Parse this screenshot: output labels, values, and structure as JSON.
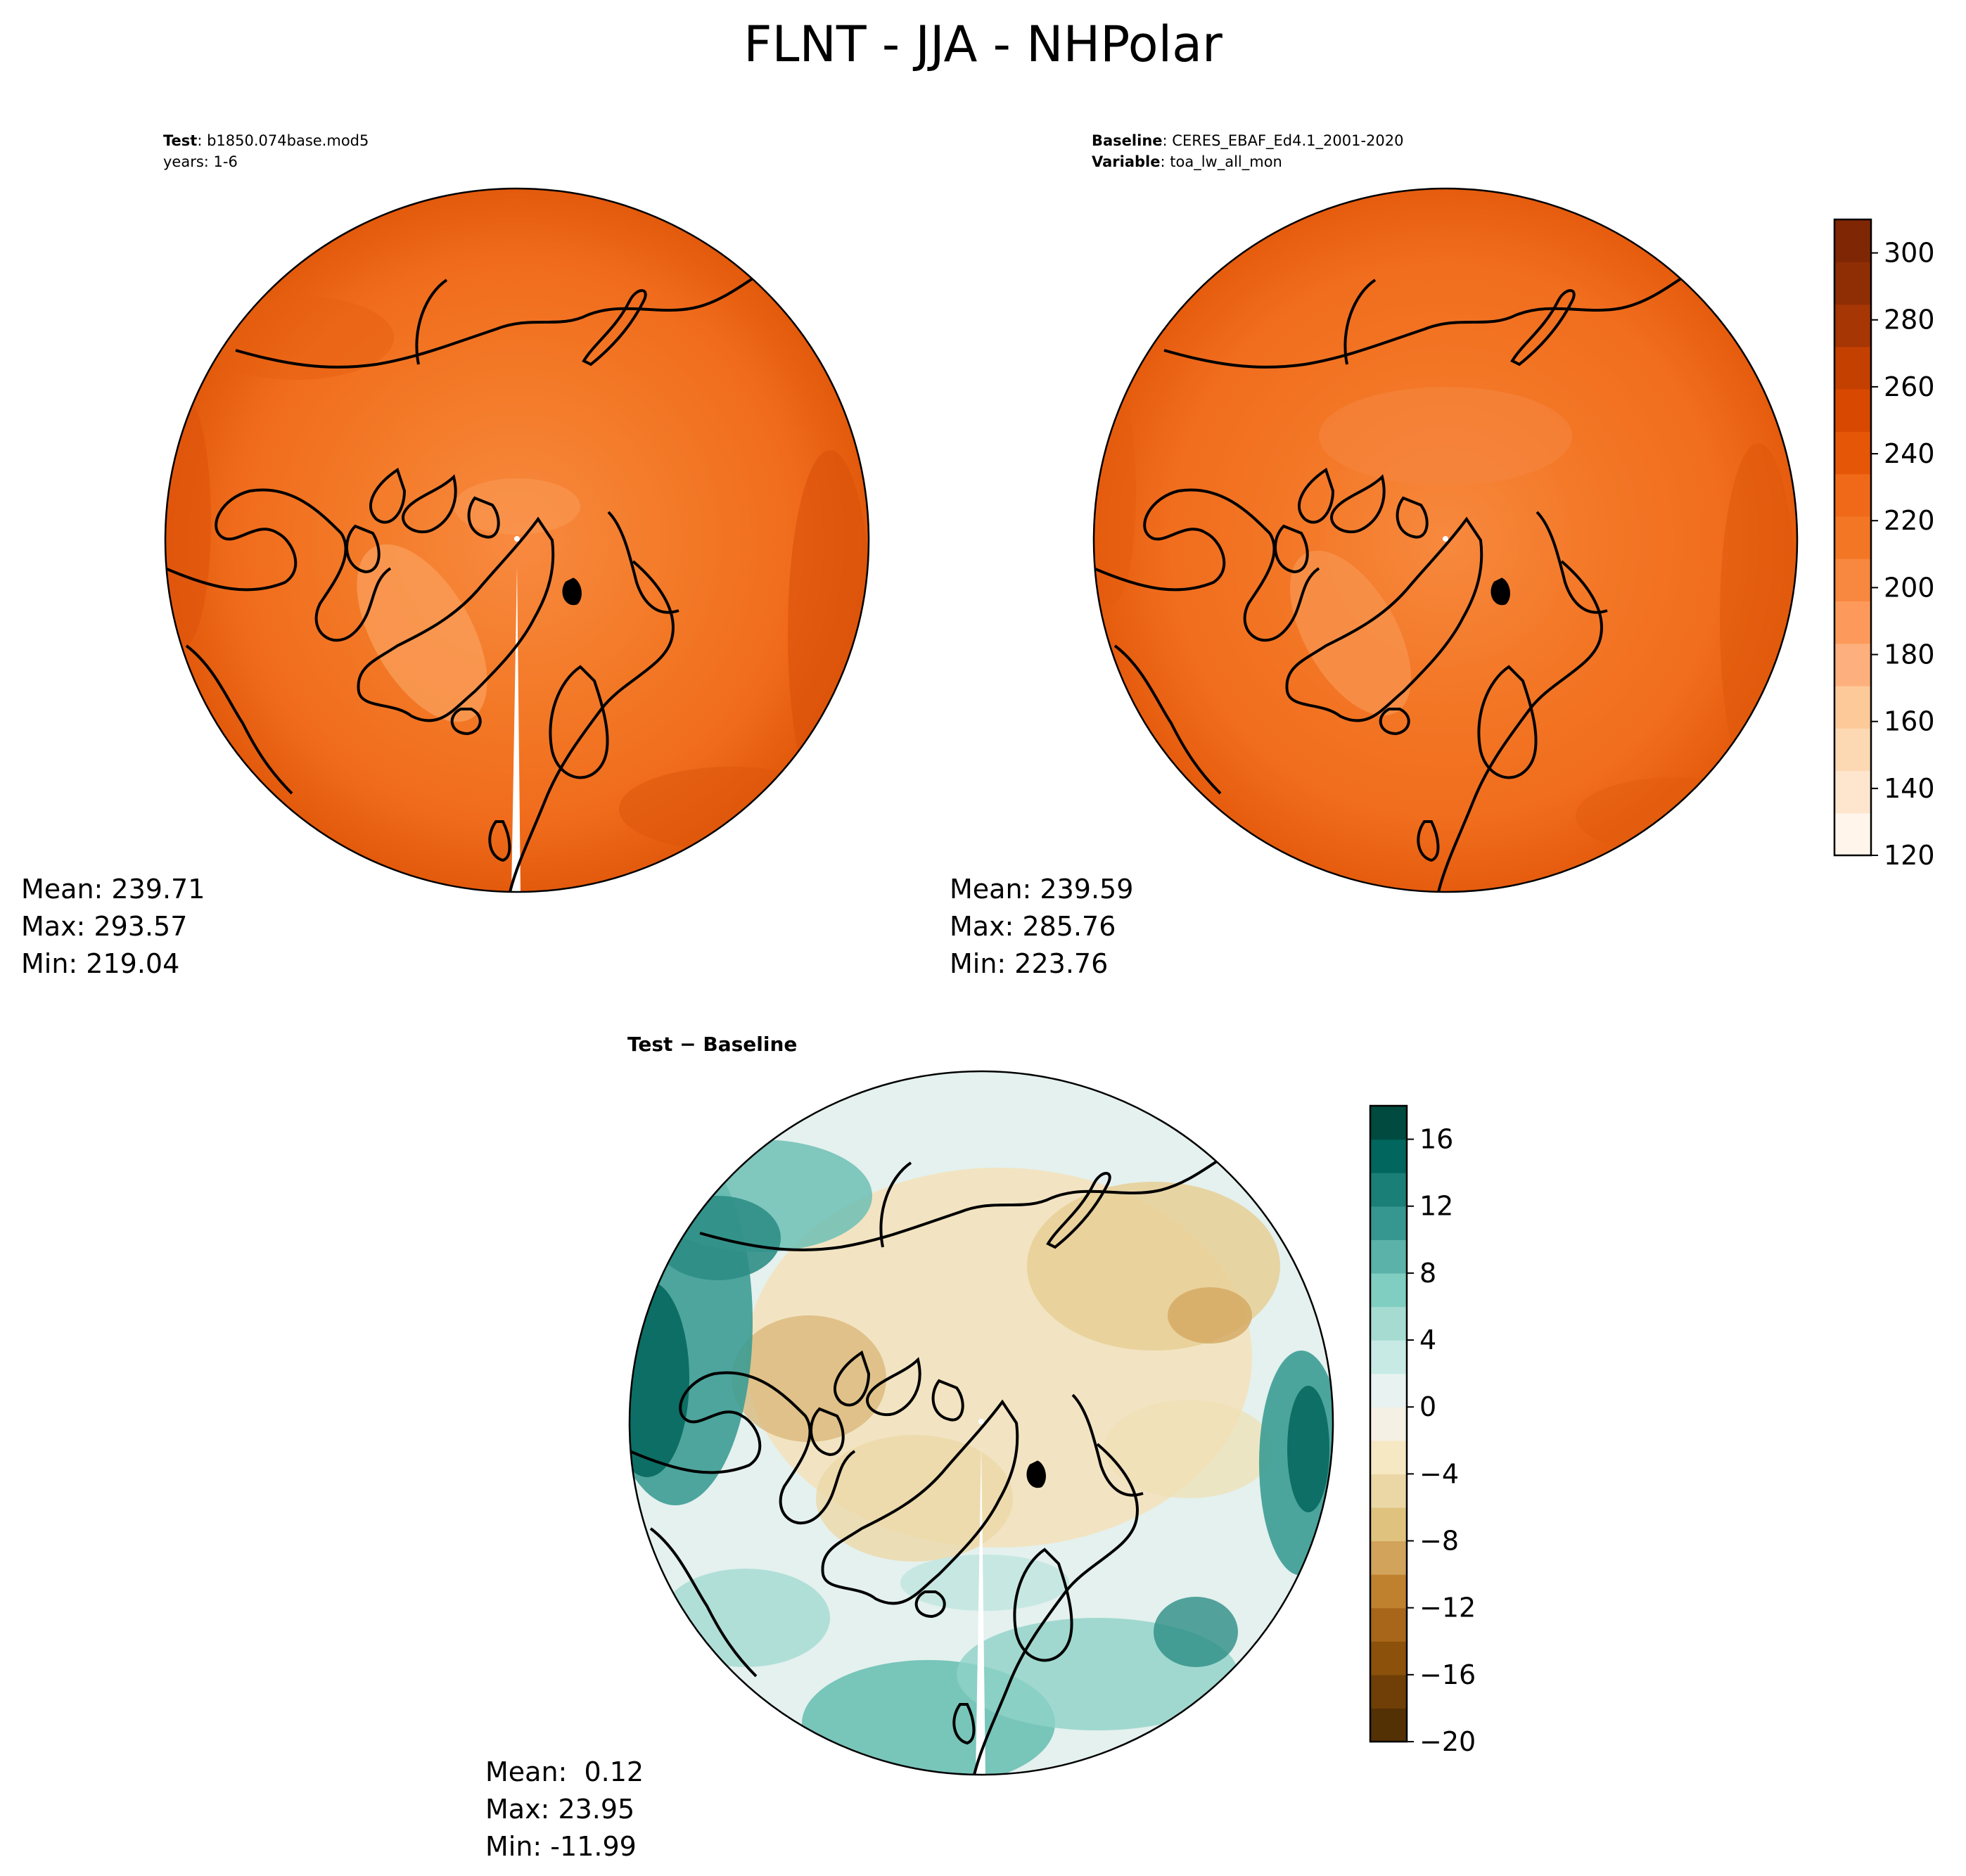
{
  "figure": {
    "title": "FLNT - JJA - NHPolar"
  },
  "panels": [
    {
      "id": "test",
      "header": [
        {
          "key": "Test",
          "value": "b1850.074base.mod5"
        },
        {
          "key": "",
          "value": "years: 1-6"
        }
      ],
      "stats": {
        "mean": "Mean: 239.71",
        "max": "Max: 293.57",
        "min": "Min: 219.04"
      },
      "colormap": "Oranges"
    },
    {
      "id": "baseline",
      "header": [
        {
          "key": "Baseline",
          "value": "CERES_EBAF_Ed4.1_2001-2020"
        },
        {
          "key": "Variable",
          "value": "toa_lw_all_mon"
        }
      ],
      "stats": {
        "mean": "Mean: 239.59",
        "max": "Max: 285.76",
        "min": "Min: 223.76"
      },
      "colormap": "Oranges"
    },
    {
      "id": "difference",
      "title": "Test − Baseline",
      "stats": {
        "mean": "Mean:  0.12",
        "max": "Max: 23.95",
        "min": "Min: -11.99"
      },
      "colormap": "BrBG"
    }
  ],
  "colorbars": {
    "main": {
      "range": [
        120,
        310
      ],
      "ticks": [
        "120",
        "140",
        "160",
        "180",
        "200",
        "220",
        "240",
        "260",
        "280",
        "300"
      ],
      "colors": [
        "#fff5eb",
        "#fee6ce",
        "#fdd9b3",
        "#fdc998",
        "#fdb07d",
        "#fd9a5b",
        "#f88740",
        "#f37624",
        "#f06918",
        "#e65607",
        "#d94801",
        "#c44001",
        "#a63603",
        "#8f2e04",
        "#7f2704"
      ]
    },
    "diff": {
      "range": [
        -20,
        18
      ],
      "ticks": [
        "−20",
        "−16",
        "−12",
        "−8",
        "−4",
        "0",
        "4",
        "8",
        "12",
        "16"
      ],
      "colors": [
        "#543005",
        "#6f3f07",
        "#8c510a",
        "#a8661a",
        "#bf812d",
        "#d2a35a",
        "#dfc27d",
        "#ebd7a6",
        "#f6e8c3",
        "#f5f0e4",
        "#e8f3f1",
        "#c7eae5",
        "#a6dbd1",
        "#80cdc1",
        "#5ab2a8",
        "#35978f",
        "#1a7f77",
        "#01665e",
        "#004a40"
      ]
    }
  },
  "map_colors": {
    "coast": "#000000",
    "test_base": "#f07020",
    "baseline_base": "#f27322"
  }
}
